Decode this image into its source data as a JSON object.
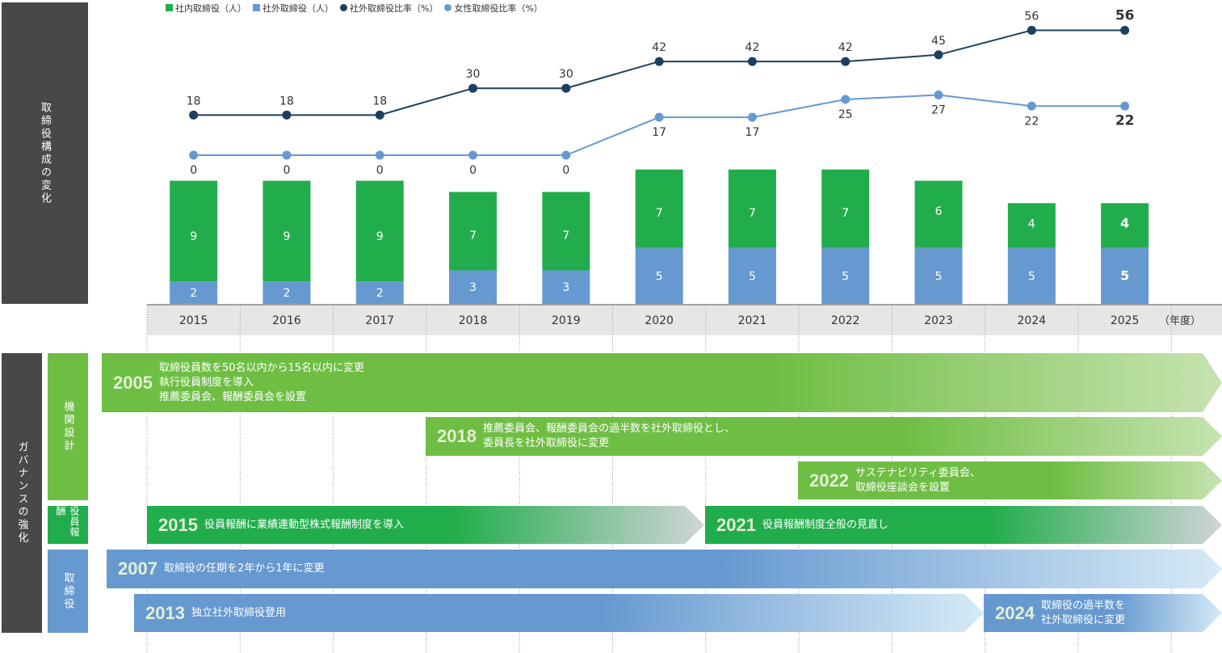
{
  "chart_data": {
    "type": "bar+line",
    "categories": [
      "2015",
      "2016",
      "2017",
      "2018",
      "2019",
      "2020",
      "2021",
      "2022",
      "2023",
      "2024",
      "2025"
    ],
    "x_unit": "（年度）",
    "series": [
      {
        "name": "社内取締役（人）",
        "type": "stacked-bar",
        "color": "#22ad4c",
        "values": [
          9,
          9,
          9,
          7,
          7,
          7,
          7,
          7,
          6,
          4,
          4
        ]
      },
      {
        "name": "社外取締役（人）",
        "type": "stacked-bar",
        "color": "#6699d0",
        "values": [
          2,
          2,
          2,
          3,
          3,
          5,
          5,
          5,
          5,
          5,
          5
        ]
      },
      {
        "name": "社外取締役比率（%）",
        "type": "line",
        "color": "#1c3f60",
        "values": [
          18,
          18,
          18,
          30,
          30,
          42,
          42,
          42,
          45,
          56,
          56
        ]
      },
      {
        "name": "女性取締役比率（%）",
        "type": "line",
        "color": "#6699d0",
        "values": [
          0,
          0,
          0,
          0,
          0,
          17,
          17,
          25,
          27,
          22,
          22
        ]
      }
    ]
  },
  "side_title": "取締役構成の変化",
  "governance": {
    "title": "ガバナンスの強化",
    "groups": [
      "機関設計",
      "役員報酬",
      "取締役"
    ],
    "events": [
      {
        "year": "2005",
        "text": "取締役員数を50名以内から15名以内に変更\n執行役員制度を導入\n推薦委員会、報酬委員会を設置"
      },
      {
        "year": "2018",
        "text": "推薦委員会、報酬委員会の過半数を社外取締役とし、\n委員長を社外取締役に変更"
      },
      {
        "year": "2022",
        "text": "サステナビリティ委員会、\n取締役座談会を設置"
      },
      {
        "year": "2015",
        "text": "役員報酬に業績連動型株式報酬制度を導入"
      },
      {
        "year": "2021",
        "text": "役員報酬制度全般の見直し"
      },
      {
        "year": "2007",
        "text": "取締役の任期を2年から1年に変更"
      },
      {
        "year": "2013",
        "text": "独立社外取締役登用"
      },
      {
        "year": "2024",
        "text": "取締役の過半数を\n社外取締役に変更"
      }
    ]
  }
}
